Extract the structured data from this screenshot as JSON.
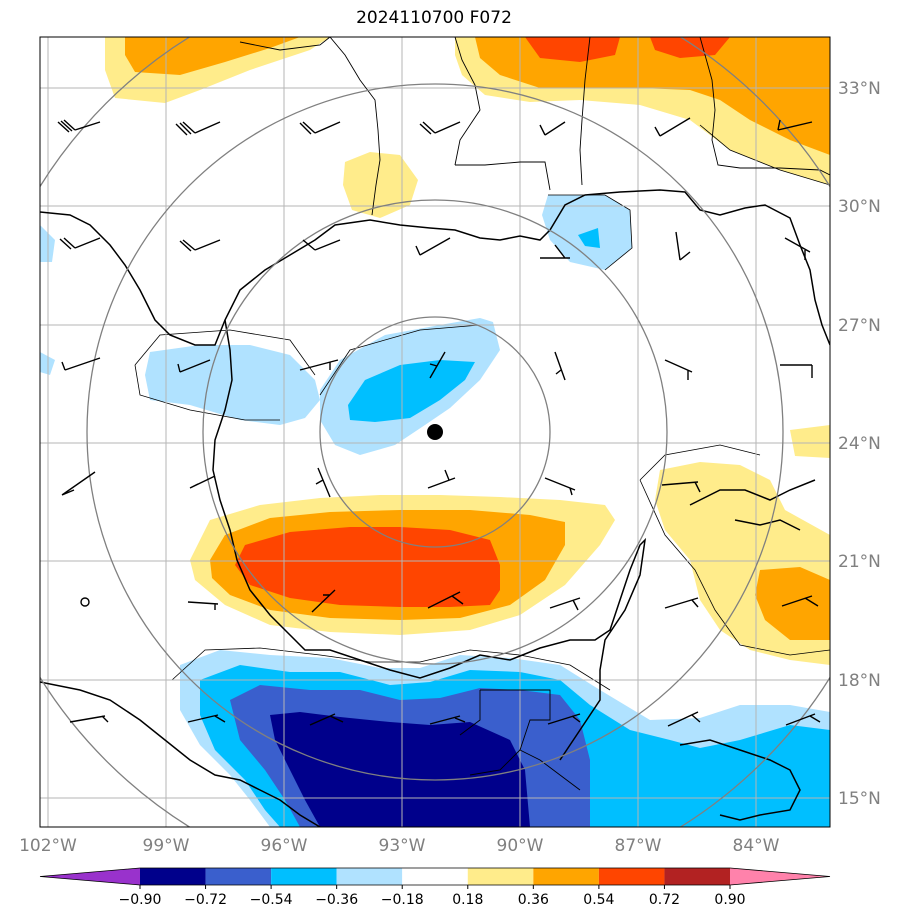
{
  "title": "2024110700 F072",
  "lat_labels": [
    "33°N",
    "30°N",
    "27°N",
    "24°N",
    "21°N",
    "18°N",
    "15°N"
  ],
  "lon_labels": [
    "102°W",
    "99°W",
    "96°W",
    "93°W",
    "90°W",
    "87°W",
    "84°W"
  ],
  "colorbar": {
    "tick_labels": [
      "−0.90",
      "−0.72",
      "−0.54",
      "−0.36",
      "−0.18",
      "0.18",
      "0.36",
      "0.54",
      "0.72",
      "0.90"
    ],
    "colors": [
      "#9932cc",
      "#00008b",
      "#3a5fcd",
      "#00bfff",
      "#b0e2ff",
      "#ffffff",
      "#ffec8b",
      "#ffa500",
      "#ff4500",
      "#b22222",
      "#ff82ab"
    ]
  },
  "storm_center": {
    "lon": "92.3°W",
    "lat": "24.3°N"
  },
  "range_rings": "concentric circles around storm center"
}
